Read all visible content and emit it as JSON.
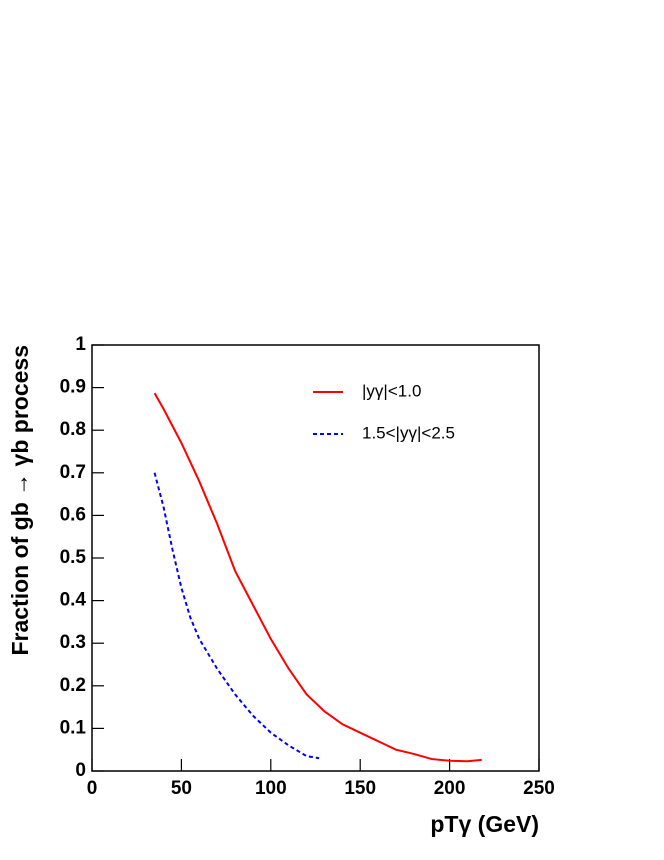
{
  "chart_data": {
    "type": "line",
    "xlabel": "pTγ (GeV)",
    "ylabel": "Fraction of gb → γb process",
    "xlim": [
      0,
      250
    ],
    "xticks": [
      0,
      50,
      100,
      150,
      200,
      250
    ],
    "ylim": [
      0,
      1
    ],
    "yticks": [
      0,
      0.1,
      0.2,
      0.3,
      0.4,
      0.5,
      0.6,
      0.7,
      0.8,
      0.9,
      1
    ],
    "legend": "upper right",
    "series": [
      {
        "name": "|yγ|<1.0",
        "color": "#ff0000",
        "style": "solid",
        "x": [
          35,
          40,
          50,
          60,
          70,
          80,
          90,
          100,
          110,
          120,
          130,
          140,
          150,
          160,
          170,
          180,
          190,
          200,
          210,
          218
        ],
        "values": [
          0.887,
          0.85,
          0.77,
          0.68,
          0.58,
          0.47,
          0.39,
          0.31,
          0.24,
          0.18,
          0.14,
          0.11,
          0.09,
          0.07,
          0.05,
          0.04,
          0.028,
          0.024,
          0.023,
          0.026
        ]
      },
      {
        "name": "1.5<|yγ|<2.5",
        "color": "#0000ff",
        "style": "dashed",
        "x": [
          35,
          40,
          45,
          50,
          55,
          60,
          70,
          80,
          90,
          100,
          110,
          120,
          127
        ],
        "values": [
          0.7,
          0.62,
          0.52,
          0.43,
          0.36,
          0.31,
          0.24,
          0.18,
          0.13,
          0.09,
          0.06,
          0.035,
          0.03
        ]
      }
    ]
  }
}
